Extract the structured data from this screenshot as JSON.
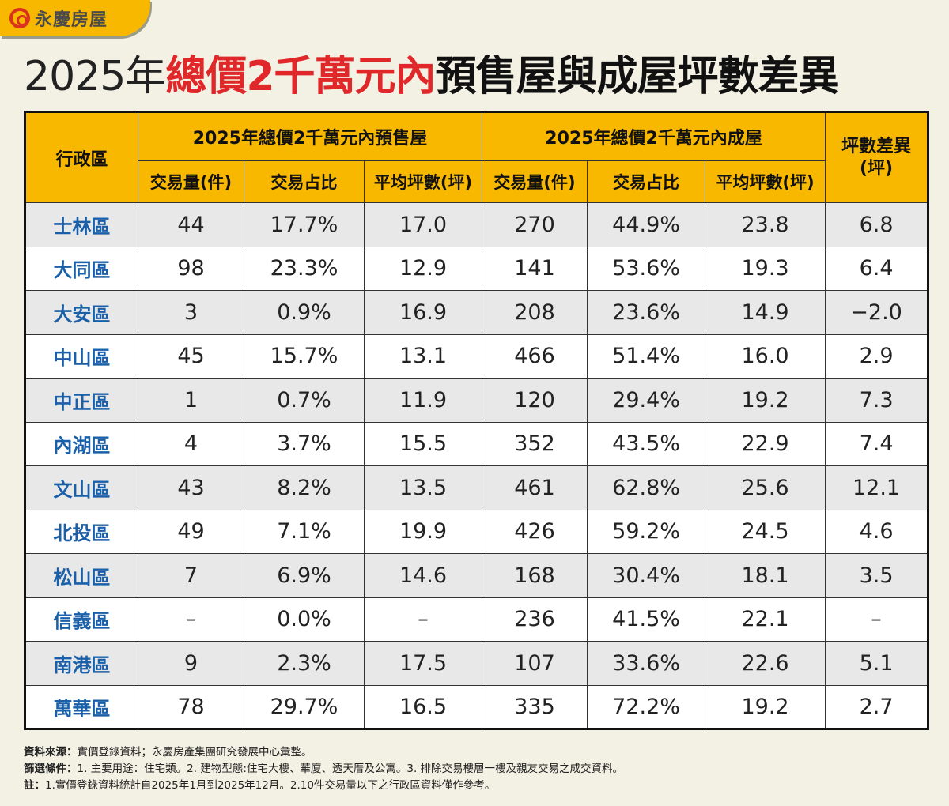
{
  "logo": {
    "text": "永慶房屋",
    "brand_color": "#f8b800"
  },
  "title": {
    "part1": "2025年",
    "part2": "總價2千萬元內",
    "part3": "預售屋與成屋坪數差異"
  },
  "table": {
    "district_header": "行政區",
    "group_presale": "2025年總價2千萬元內預售屋",
    "group_existing": "2025年總價2千萬元內成屋",
    "diff_header": "坪數差異(坪)",
    "sub_headers": [
      "交易量(件)",
      "交易占比",
      "平均坪數(坪)",
      "交易量(件)",
      "交易占比",
      "平均坪數(坪)"
    ],
    "rows": [
      [
        "士林區",
        "44",
        "17.7%",
        "17.0",
        "270",
        "44.9%",
        "23.8",
        "6.8"
      ],
      [
        "大同區",
        "98",
        "23.3%",
        "12.9",
        "141",
        "53.6%",
        "19.3",
        "6.4"
      ],
      [
        "大安區",
        "3",
        "0.9%",
        "16.9",
        "208",
        "23.6%",
        "14.9",
        "−2.0"
      ],
      [
        "中山區",
        "45",
        "15.7%",
        "13.1",
        "466",
        "51.4%",
        "16.0",
        "2.9"
      ],
      [
        "中正區",
        "1",
        "0.7%",
        "11.9",
        "120",
        "29.4%",
        "19.2",
        "7.3"
      ],
      [
        "內湖區",
        "4",
        "3.7%",
        "15.5",
        "352",
        "43.5%",
        "22.9",
        "7.4"
      ],
      [
        "文山區",
        "43",
        "8.2%",
        "13.5",
        "461",
        "62.8%",
        "25.6",
        "12.1"
      ],
      [
        "北投區",
        "49",
        "7.1%",
        "19.9",
        "426",
        "59.2%",
        "24.5",
        "4.6"
      ],
      [
        "松山區",
        "7",
        "6.9%",
        "14.6",
        "168",
        "30.4%",
        "18.1",
        "3.5"
      ],
      [
        "信義區",
        "–",
        "0.0%",
        "–",
        "236",
        "41.5%",
        "22.1",
        "–"
      ],
      [
        "南港區",
        "9",
        "2.3%",
        "17.5",
        "107",
        "33.6%",
        "22.6",
        "5.1"
      ],
      [
        "萬華區",
        "78",
        "29.7%",
        "16.5",
        "335",
        "72.2%",
        "19.2",
        "2.7"
      ]
    ]
  },
  "notes": [
    {
      "label": "資料來源：",
      "text": "實價登錄資料；永慶房產集團研究發展中心彙整。"
    },
    {
      "label": "篩選條件：",
      "text": "1. 主要用途：住宅類。2. 建物型態:住宅大樓、華廈、透天厝及公寓。3. 排除交易樓層一樓及親友交易之成交資料。"
    },
    {
      "label": "註：",
      "text": "1.實價登錄資料統計自2025年1月到2025年12月。2.10件交易量以下之行政區資料僅作參考。"
    }
  ]
}
